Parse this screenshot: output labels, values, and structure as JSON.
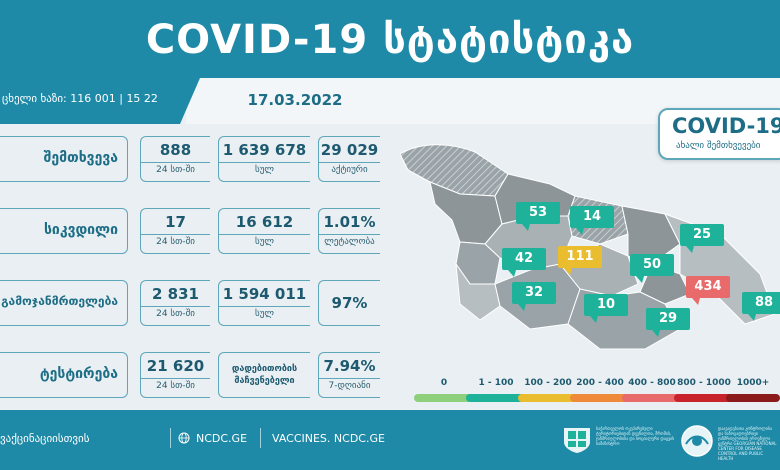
{
  "header": {
    "title": "COVID-19  სტატისტიკა"
  },
  "subheader": {
    "hotline": "ცხელი ხაზი: 116 001 | 15 22",
    "date": "17.03.2022"
  },
  "stats": [
    {
      "category": "შემთხვევა",
      "cells": [
        {
          "value": "888",
          "caption": "24 სთ-ში"
        },
        {
          "value": "1 639 678",
          "caption": "სულ"
        },
        {
          "value": "29 029",
          "caption": "აქტიური"
        }
      ]
    },
    {
      "category": "სიკვდილი",
      "cells": [
        {
          "value": "17",
          "caption": "24 სთ-ში"
        },
        {
          "value": "16 612",
          "caption": "სულ"
        },
        {
          "value": "1.01%",
          "caption": "ლეტალობა"
        }
      ]
    },
    {
      "category": "გამოჯანმრთელება",
      "cells": [
        {
          "value": "2 831",
          "caption": "24 სთ-ში"
        },
        {
          "value": "1 594 011",
          "caption": "სულ"
        },
        {
          "value": "97%",
          "caption": ""
        }
      ]
    },
    {
      "category": "ტესტირება",
      "cells": [
        {
          "value": "21 620",
          "caption": "24 სთ-ში"
        },
        {
          "value": "დადებითობის მაჩვენებელი",
          "caption": ""
        },
        {
          "value": "7.94%",
          "caption": "7-დღიანი"
        }
      ]
    }
  ],
  "map": {
    "badge_title": "COVID-19",
    "badge_subtitle": "ახალი შემთხვევები",
    "regions": [
      {
        "value": "53",
        "level": "teal"
      },
      {
        "value": "14",
        "level": "teal"
      },
      {
        "value": "25",
        "level": "teal"
      },
      {
        "value": "42",
        "level": "teal"
      },
      {
        "value": "111",
        "level": "yellow"
      },
      {
        "value": "50",
        "level": "teal"
      },
      {
        "value": "434",
        "level": "red"
      },
      {
        "value": "88",
        "level": "teal"
      },
      {
        "value": "32",
        "level": "teal"
      },
      {
        "value": "10",
        "level": "teal"
      },
      {
        "value": "29",
        "level": "teal"
      }
    ]
  },
  "legend": [
    {
      "label": "0",
      "color": "#8dcf7a"
    },
    {
      "label": "1 - 100",
      "color": "#1fb29a"
    },
    {
      "label": "100 - 200",
      "color": "#e9bd2e"
    },
    {
      "label": "200 - 400",
      "color": "#ee8a3a"
    },
    {
      "label": "400 - 800",
      "color": "#e86a6a"
    },
    {
      "label": "800 - 1000",
      "color": "#c8222b"
    },
    {
      "label": "1000+",
      "color": "#8b1a1a"
    }
  ],
  "footer": {
    "item1": "ვაქცინაციისთვის",
    "item2": "NCDC.GE",
    "item3": "VACCINES. NCDC.GE",
    "logo_a_text": "საქართველოს ოკუპირებული ტერიტორიებიდან დევნილთა, შრომის, ჯანმრთელობისა და სოციალური დაცვის სამინისტრო",
    "logo_b_text": "დაავადებათა კონტროლისა და საზოგადოებრივი ჯანმრთელობის ეროვნული ცენტრი GEORGIAN NATIONAL CENTER FOR DISEASE CONTROL AND PUBLIC HEALTH"
  },
  "colors": {
    "brand": "#1e8aa7",
    "teal_bubble": "#1fb29a",
    "yellow_bubble": "#e9bd2e",
    "red_bubble": "#e86a6a"
  }
}
